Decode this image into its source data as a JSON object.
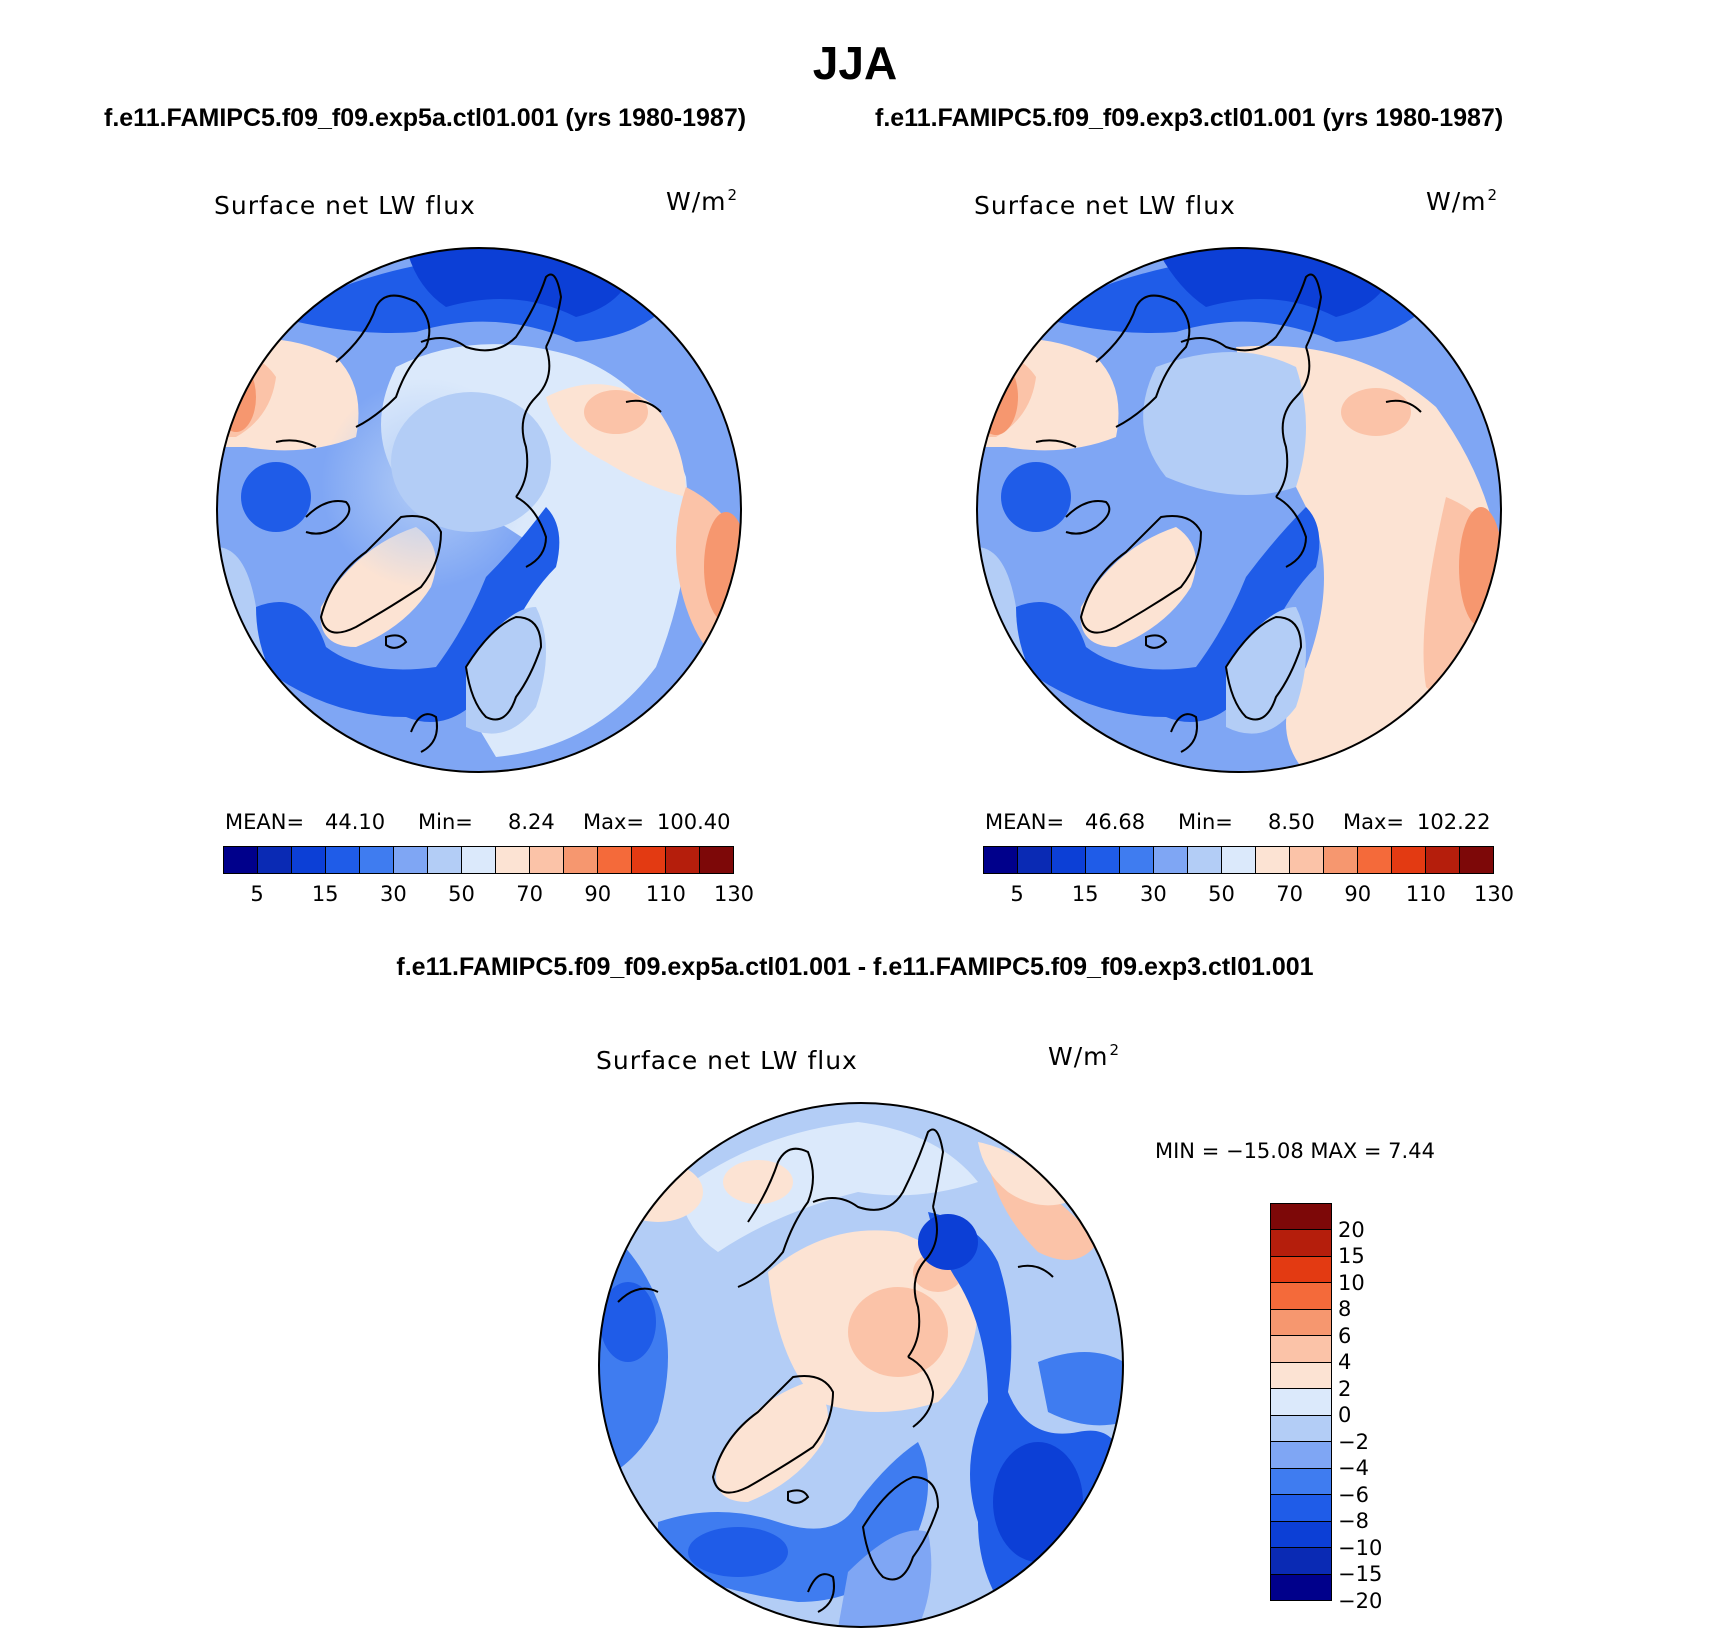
{
  "page": {
    "title": "JJA",
    "case1": "f.e11.FAMIPC5.f09_f09.exp5a.ctl01.001 (yrs 1980-1987)",
    "case2": "f.e11.FAMIPC5.f09_f09.exp3.ctl01.001 (yrs 1980-1987)",
    "diff_title": "f.e11.FAMIPC5.f09_f09.exp5a.ctl01.001 - f.e11.FAMIPC5.f09_f09.exp3.ctl01.001"
  },
  "panels": [
    {
      "variable": "Surface net LW flux",
      "units": "W/m",
      "units_sup": "2",
      "mean_label": "MEAN=",
      "mean": "44.10",
      "min_label": "Min=",
      "min": "8.24",
      "max_label": "Max=",
      "max": "100.40",
      "colorbar_labels": [
        "5",
        "15",
        "30",
        "50",
        "70",
        "90",
        "110",
        "130"
      ]
    },
    {
      "variable": "Surface net LW flux",
      "units": "W/m",
      "units_sup": "2",
      "mean_label": "MEAN=",
      "mean": "46.68",
      "min_label": "Min=",
      "min": "8.50",
      "max_label": "Max=",
      "max": "102.22",
      "colorbar_labels": [
        "5",
        "15",
        "30",
        "50",
        "70",
        "90",
        "110",
        "130"
      ]
    }
  ],
  "diff_panel": {
    "variable": "Surface net LW flux",
    "units": "W/m",
    "units_sup": "2",
    "minmax": "MIN = −15.08 MAX =    7.44",
    "colorbar_labels": [
      "20",
      "15",
      "10",
      "8",
      "6",
      "4",
      "2",
      "0",
      "−2",
      "−4",
      "−6",
      "−8",
      "−10",
      "−15",
      "−20"
    ]
  },
  "colors": {
    "abs_scale": [
      "#00008b",
      "#0a2ab4",
      "#0c3fd6",
      "#1f5ce8",
      "#3f7cf0",
      "#7fa6f4",
      "#b3cdf6",
      "#dbe9fb",
      "#fce3d3",
      "#fbc3a8",
      "#f6976f",
      "#f46a3a",
      "#e33a12",
      "#b51e0c",
      "#7d0808"
    ],
    "diff_scale": [
      "#7d0808",
      "#b51e0c",
      "#e33a12",
      "#f46a3a",
      "#f6976f",
      "#fbc3a8",
      "#fce3d3",
      "#dbe9fb",
      "#b3cdf6",
      "#7fa6f4",
      "#3f7cf0",
      "#1f5ce8",
      "#0c3fd6",
      "#0a2ab4",
      "#00008b"
    ]
  },
  "chart_data": [
    {
      "type": "heatmap",
      "projection": "north-polar-stereographic",
      "title": "Surface net LW flux",
      "units": "W/m2",
      "case": "f.e11.FAMIPC5.f09_f09.exp5a.ctl01.001 (yrs 1980-1987)",
      "season": "JJA",
      "mean": 44.1,
      "min": 8.24,
      "max": 100.4,
      "contour_levels": [
        5,
        10,
        15,
        20,
        25,
        30,
        40,
        50,
        60,
        70,
        80,
        90,
        100,
        110,
        120,
        130
      ],
      "colorbar_tick_labels": [
        5,
        15,
        30,
        50,
        70,
        90,
        110,
        130
      ]
    },
    {
      "type": "heatmap",
      "projection": "north-polar-stereographic",
      "title": "Surface net LW flux",
      "units": "W/m2",
      "case": "f.e11.FAMIPC5.f09_f09.exp3.ctl01.001 (yrs 1980-1987)",
      "season": "JJA",
      "mean": 46.68,
      "min": 8.5,
      "max": 102.22,
      "contour_levels": [
        5,
        10,
        15,
        20,
        25,
        30,
        40,
        50,
        60,
        70,
        80,
        90,
        100,
        110,
        120,
        130
      ],
      "colorbar_tick_labels": [
        5,
        15,
        30,
        50,
        70,
        90,
        110,
        130
      ]
    },
    {
      "type": "heatmap",
      "projection": "north-polar-stereographic",
      "title": "Surface net LW flux",
      "units": "W/m2",
      "case": "f.e11.FAMIPC5.f09_f09.exp5a.ctl01.001 - f.e11.FAMIPC5.f09_f09.exp3.ctl01.001",
      "min": -15.08,
      "max": 7.44,
      "contour_levels": [
        -20,
        -15,
        -10,
        -8,
        -6,
        -4,
        -2,
        0,
        2,
        4,
        6,
        8,
        10,
        15,
        20
      ],
      "colorbar_tick_labels": [
        20,
        15,
        10,
        8,
        6,
        4,
        2,
        0,
        -2,
        -4,
        -6,
        -8,
        -10,
        -15,
        -20
      ]
    }
  ]
}
